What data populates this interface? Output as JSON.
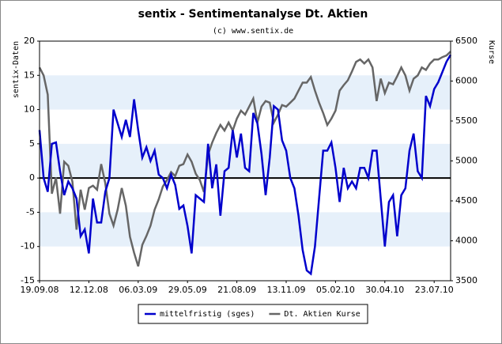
{
  "chart_data": {
    "type": "line",
    "title": "sentix - Sentimentanalyse Dt. Aktien",
    "subtitle": "(c) www.sentix.de",
    "y_label": "sentix-Daten",
    "y2_label": "Kurse",
    "categories": [
      "19.09.08",
      null,
      null,
      null,
      null,
      null,
      null,
      null,
      null,
      null,
      null,
      null,
      "12.12.08",
      null,
      null,
      null,
      null,
      null,
      null,
      null,
      null,
      null,
      null,
      null,
      "06.03.09",
      null,
      null,
      null,
      null,
      null,
      null,
      null,
      null,
      null,
      null,
      null,
      "29.05.09",
      null,
      null,
      null,
      null,
      null,
      null,
      null,
      null,
      null,
      null,
      null,
      "21.08.09",
      null,
      null,
      null,
      null,
      null,
      null,
      null,
      null,
      null,
      null,
      null,
      "13.11.09",
      null,
      null,
      null,
      null,
      null,
      null,
      null,
      null,
      null,
      null,
      null,
      "05.02.10",
      null,
      null,
      null,
      null,
      null,
      null,
      null,
      null,
      null,
      null,
      null,
      "30.04.10",
      null,
      null,
      null,
      null,
      null,
      null,
      null,
      null,
      null,
      null,
      null,
      "23.07.10",
      null,
      null,
      null,
      null
    ],
    "series": [
      {
        "name": "mittelfristig (sges)",
        "color": "#0000cc",
        "axis": "y",
        "values": [
          7,
          0,
          -2,
          5,
          5.2,
          1,
          -2.5,
          -0.5,
          -1.5,
          -3,
          -8.5,
          -7.5,
          -11,
          -3,
          -6.5,
          -6.5,
          -2,
          0,
          10,
          8,
          6,
          8.5,
          6,
          11.5,
          7,
          3,
          4.5,
          2.5,
          4,
          0.5,
          0,
          -1.5,
          0.5,
          -1,
          -4.5,
          -4,
          -7,
          -11,
          -2.5,
          -3,
          -3.5,
          5,
          -1.5,
          2,
          -5.5,
          1,
          1.5,
          7,
          3,
          6.5,
          1.5,
          1,
          9.5,
          8,
          3.5,
          -2.5,
          3,
          10.5,
          10,
          5.5,
          4,
          0,
          -1.5,
          -5.5,
          -10.5,
          -13.5,
          -14,
          -10,
          -3,
          4,
          4,
          5.2,
          1.5,
          -3.5,
          1.5,
          -1.5,
          -0.5,
          -1.5,
          1.5,
          1.5,
          0,
          4,
          4,
          -3,
          -10,
          -3.5,
          -2.5,
          -8.5,
          -2.5,
          -1.5,
          4,
          6.5,
          1,
          0,
          12,
          10.5,
          13,
          14,
          15.5,
          17,
          18
        ]
      },
      {
        "name": "Dt. Aktien Kurse",
        "color": "#666666",
        "axis": "y2",
        "values": [
          6170,
          6070,
          5830,
          4590,
          4790,
          4340,
          4990,
          4940,
          4740,
          4140,
          4640,
          4390,
          4660,
          4690,
          4640,
          4960,
          4720,
          4340,
          4190,
          4390,
          4660,
          4440,
          4050,
          3850,
          3680,
          3950,
          4060,
          4190,
          4390,
          4520,
          4680,
          4760,
          4860,
          4810,
          4940,
          4960,
          5080,
          4990,
          4840,
          4760,
          4610,
          5080,
          5230,
          5350,
          5450,
          5380,
          5480,
          5380,
          5530,
          5630,
          5580,
          5680,
          5780,
          5480,
          5680,
          5750,
          5730,
          5480,
          5580,
          5700,
          5680,
          5730,
          5780,
          5880,
          5980,
          5980,
          6050,
          5880,
          5730,
          5600,
          5450,
          5530,
          5630,
          5880,
          5950,
          6010,
          6120,
          6240,
          6270,
          6220,
          6270,
          6170,
          5750,
          6030,
          5850,
          5980,
          5960,
          6060,
          6170,
          6070,
          5880,
          6030,
          6070,
          6170,
          6140,
          6220,
          6270,
          6270,
          6300,
          6320,
          6370
        ]
      }
    ],
    "ylim": [
      -15,
      20
    ],
    "yticks": [
      -15,
      -10,
      -5,
      0,
      5,
      10,
      15,
      20
    ],
    "y2lim": [
      3500,
      6500
    ],
    "y2ticks": [
      3500,
      4000,
      4500,
      5000,
      5500,
      6000,
      6500
    ],
    "legend": "bottom"
  }
}
